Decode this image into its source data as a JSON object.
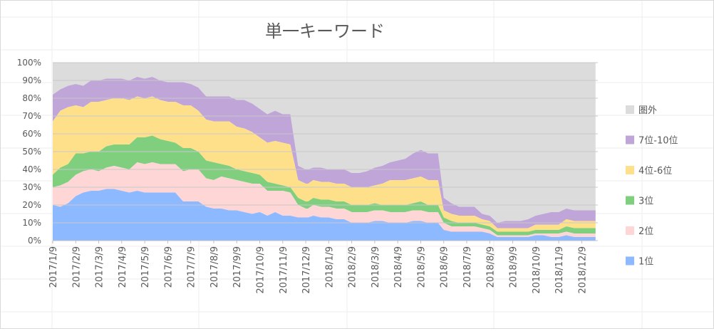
{
  "chart_data": {
    "type": "area",
    "stacked": true,
    "title": "単一キーワード",
    "y_ticks": [
      "0%",
      "10%",
      "20%",
      "30%",
      "40%",
      "50%",
      "60%",
      "70%",
      "80%",
      "90%",
      "100%"
    ],
    "ylim": [
      0,
      100
    ],
    "grid": true,
    "legend_position": "right",
    "x_tick_labels": [
      "2017/1/9",
      "2017/2/9",
      "2017/3/9",
      "2017/4/9",
      "2017/5/9",
      "2017/6/9",
      "2017/7/9",
      "2017/8/9",
      "2017/9/9",
      "2017/10/9",
      "2017/11/9",
      "2017/12/9",
      "2018/1/9",
      "2018/2/9",
      "2018/3/9",
      "2018/4/9",
      "2018/5/9",
      "2018/6/9",
      "2018/7/9",
      "2018/8/9",
      "2018/9/9",
      "2018/10/9",
      "2018/11/9",
      "2018/12/9"
    ],
    "x_index_range": [
      0,
      23.7
    ],
    "x_index": [
      0,
      0.33,
      0.67,
      1,
      1.33,
      1.67,
      2,
      2.33,
      2.67,
      3,
      3.33,
      3.67,
      4,
      4.33,
      4.67,
      5,
      5.33,
      5.67,
      6,
      6.33,
      6.67,
      7,
      7.33,
      7.67,
      8,
      8.33,
      8.67,
      9,
      9.33,
      9.67,
      10,
      10.33,
      10.67,
      11,
      11.1,
      11.33,
      11.67,
      12,
      12.33,
      12.67,
      13,
      13.33,
      13.67,
      14,
      14.33,
      14.67,
      15,
      15.33,
      15.67,
      16,
      16.33,
      16.67,
      16.75,
      17,
      17.33,
      17.67,
      18,
      18.33,
      18.67,
      19,
      19.33,
      19.67,
      20,
      20.33,
      20.67,
      21,
      21.33,
      21.67,
      22,
      22.33,
      22.67,
      23,
      23.33,
      23.6
    ],
    "series": [
      {
        "name": "1位",
        "color": "#8cb9ff",
        "values": [
          20,
          19,
          21,
          25,
          27,
          28,
          28,
          29,
          29,
          28,
          27,
          28,
          27,
          27,
          27,
          27,
          27,
          22,
          22,
          22,
          19,
          18,
          18,
          17,
          17,
          16,
          15,
          16,
          14,
          16,
          14,
          14,
          13,
          13,
          13,
          14,
          13,
          13,
          12,
          12,
          10,
          10,
          10,
          11,
          11,
          10,
          10,
          10,
          11,
          11,
          10,
          10,
          10,
          6,
          5,
          5,
          5,
          5,
          5,
          4,
          2,
          2,
          2,
          2,
          2,
          3,
          3,
          2,
          2,
          3,
          2,
          2,
          2,
          2
        ]
      },
      {
        "name": "2位",
        "color": "#ffd6d6",
        "values": [
          10,
          12,
          12,
          12,
          12,
          12,
          11,
          12,
          13,
          13,
          13,
          16,
          16,
          17,
          16,
          16,
          16,
          17,
          18,
          18,
          16,
          16,
          18,
          18,
          17,
          17,
          17,
          16,
          14,
          12,
          14,
          13,
          7,
          5,
          5,
          6,
          6,
          6,
          6,
          6,
          6,
          6,
          6,
          6,
          6,
          6,
          6,
          6,
          6,
          6,
          6,
          6,
          6,
          4,
          3,
          3,
          3,
          3,
          2,
          2,
          1,
          1,
          1,
          1,
          1,
          1,
          1,
          2,
          2,
          2,
          2,
          2,
          2,
          2
        ]
      },
      {
        "name": "3位",
        "color": "#7fcf7f",
        "values": [
          7,
          10,
          10,
          12,
          10,
          10,
          11,
          12,
          12,
          13,
          14,
          14,
          15,
          15,
          14,
          13,
          12,
          13,
          12,
          10,
          10,
          10,
          7,
          7,
          6,
          6,
          6,
          5,
          5,
          4,
          3,
          3,
          4,
          4,
          4,
          4,
          4,
          4,
          4,
          4,
          4,
          4,
          4,
          4,
          3,
          4,
          4,
          4,
          4,
          5,
          4,
          4,
          4,
          3,
          3,
          2,
          2,
          2,
          2,
          2,
          2,
          2,
          2,
          2,
          2,
          2,
          2,
          2,
          2,
          3,
          3,
          3,
          3,
          3
        ]
      },
      {
        "name": "4位-6位",
        "color": "#ffe08a",
        "values": [
          30,
          32,
          32,
          27,
          26,
          28,
          28,
          26,
          26,
          26,
          25,
          23,
          22,
          22,
          22,
          22,
          23,
          24,
          24,
          23,
          23,
          23,
          24,
          25,
          24,
          24,
          23,
          21,
          22,
          24,
          24,
          24,
          10,
          10,
          10,
          10,
          10,
          10,
          10,
          10,
          10,
          10,
          10,
          10,
          12,
          14,
          14,
          14,
          14,
          14,
          14,
          14,
          14,
          4,
          4,
          4,
          4,
          4,
          3,
          3,
          2,
          2,
          2,
          2,
          2,
          3,
          3,
          3,
          3,
          4,
          4,
          4,
          4,
          4
        ]
      },
      {
        "name": "7位-10位",
        "color": "#bfa5d8",
        "values": [
          15,
          12,
          12,
          12,
          12,
          12,
          12,
          12,
          11,
          11,
          11,
          11,
          11,
          11,
          11,
          11,
          11,
          13,
          12,
          13,
          13,
          14,
          14,
          14,
          15,
          16,
          16,
          16,
          16,
          17,
          16,
          17,
          8,
          8,
          8,
          7,
          8,
          7,
          8,
          8,
          8,
          8,
          9,
          10,
          10,
          10,
          11,
          12,
          14,
          15,
          15,
          15,
          15,
          7,
          6,
          5,
          5,
          5,
          3,
          3,
          3,
          4,
          4,
          4,
          5,
          5,
          6,
          7,
          7,
          6,
          6,
          6,
          6,
          6
        ]
      },
      {
        "name": "圏外",
        "color": "#dcdcdc",
        "fill_to_top": true,
        "values": []
      }
    ]
  }
}
